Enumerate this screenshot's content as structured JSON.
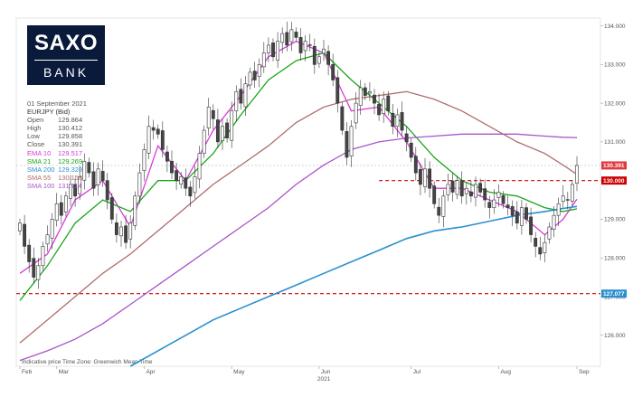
{
  "brand": {
    "line1": "SAXO",
    "line2": "BANK"
  },
  "info": {
    "date": "01 September 2021",
    "instrument": "EURJPY (Bid)",
    "rows": [
      {
        "label": "Open",
        "value": "129.864",
        "color": "#555555"
      },
      {
        "label": "High",
        "value": "130.412",
        "color": "#555555"
      },
      {
        "label": "Low",
        "value": "129.858",
        "color": "#555555"
      },
      {
        "label": "Close",
        "value": "130.391",
        "color": "#555555"
      },
      {
        "label": "EMA 10",
        "value": "129.517",
        "color": "#d63cd6"
      },
      {
        "label": "SMA 21",
        "value": "129.269",
        "color": "#1aa51a"
      },
      {
        "label": "SMA 200",
        "value": "129.328",
        "color": "#2b8fcf"
      },
      {
        "label": "SMA 55",
        "value": "130.158",
        "color": "#b06d6d"
      },
      {
        "label": "SMA 100",
        "value": "131.114",
        "color": "#a855c8"
      }
    ]
  },
  "chart_data": {
    "type": "candlestick",
    "title": "EURJPY (Bid)",
    "ylim": [
      125.2,
      134.2
    ],
    "y_ticks": [
      "126.000",
      "127.000",
      "128.000",
      "129.000",
      "130.000",
      "131.000",
      "132.000",
      "133.000",
      "134.000"
    ],
    "x_ticks": [
      "Feb",
      "Mar",
      "Apr",
      "May",
      "Jun",
      "Jul",
      "Aug",
      "Sep"
    ],
    "x_year": "2021",
    "footer": "Indicative price    Time Zone: Greenwich Mean Time",
    "price_points": [
      [
        0,
        128.9
      ],
      [
        1,
        128.3
      ],
      [
        2,
        127.9
      ],
      [
        3,
        127.5
      ],
      [
        4,
        127.8
      ],
      [
        5,
        128.3
      ],
      [
        6,
        128.6
      ],
      [
        7,
        129.0
      ],
      [
        8,
        129.4
      ],
      [
        9,
        129.1
      ],
      [
        10,
        129.6
      ],
      [
        11,
        129.9
      ],
      [
        12,
        129.6
      ],
      [
        13,
        130.1
      ],
      [
        14,
        130.5
      ],
      [
        15,
        130.2
      ],
      [
        16,
        129.8
      ],
      [
        17,
        130.3
      ],
      [
        18,
        130.0
      ],
      [
        19,
        129.5
      ],
      [
        20,
        129.0
      ],
      [
        21,
        128.6
      ],
      [
        22,
        128.8
      ],
      [
        23,
        128.4
      ],
      [
        24,
        128.9
      ],
      [
        25,
        129.6
      ],
      [
        26,
        130.2
      ],
      [
        27,
        130.8
      ],
      [
        28,
        131.4
      ],
      [
        29,
        131.3
      ],
      [
        30,
        131.2
      ],
      [
        31,
        130.8
      ],
      [
        32,
        130.5
      ],
      [
        33,
        130.2
      ],
      [
        34,
        130.0
      ],
      [
        35,
        130.1
      ],
      [
        36,
        129.8
      ],
      [
        37,
        129.6
      ],
      [
        38,
        130.1
      ],
      [
        39,
        130.7
      ],
      [
        40,
        131.3
      ],
      [
        41,
        131.9
      ],
      [
        42,
        131.6
      ],
      [
        43,
        131.0
      ],
      [
        44,
        131.4
      ],
      [
        45,
        131.1
      ],
      [
        46,
        131.8
      ],
      [
        47,
        132.3
      ],
      [
        48,
        132.0
      ],
      [
        49,
        132.5
      ],
      [
        50,
        132.8
      ],
      [
        51,
        132.6
      ],
      [
        52,
        133.0
      ],
      [
        53,
        133.3
      ],
      [
        54,
        133.5
      ],
      [
        55,
        133.2
      ],
      [
        56,
        133.6
      ],
      [
        57,
        133.8
      ],
      [
        58,
        133.5
      ],
      [
        59,
        133.9
      ],
      [
        60,
        133.7
      ],
      [
        61,
        133.3
      ],
      [
        62,
        133.6
      ],
      [
        63,
        133.5
      ],
      [
        64,
        133.0
      ],
      [
        65,
        133.2
      ],
      [
        66,
        133.4
      ],
      [
        67,
        133.0
      ],
      [
        68,
        132.6
      ],
      [
        69,
        132.0
      ],
      [
        70,
        131.3
      ],
      [
        71,
        130.6
      ],
      [
        72,
        131.4
      ],
      [
        73,
        132.0
      ],
      [
        74,
        132.4
      ],
      [
        75,
        132.2
      ],
      [
        76,
        132.3
      ],
      [
        77,
        132.0
      ],
      [
        78,
        131.7
      ],
      [
        79,
        132.1
      ],
      [
        80,
        131.8
      ],
      [
        81,
        131.4
      ],
      [
        82,
        131.7
      ],
      [
        83,
        131.3
      ],
      [
        84,
        131.0
      ],
      [
        85,
        130.6
      ],
      [
        86,
        130.2
      ],
      [
        87,
        129.9
      ],
      [
        88,
        130.3
      ],
      [
        89,
        129.8
      ],
      [
        90,
        129.4
      ],
      [
        91,
        129.1
      ],
      [
        92,
        129.6
      ],
      [
        93,
        129.9
      ],
      [
        94,
        129.7
      ],
      [
        95,
        130.0
      ],
      [
        96,
        129.6
      ],
      [
        97,
        129.8
      ],
      [
        98,
        129.6
      ],
      [
        99,
        129.9
      ],
      [
        100,
        129.7
      ],
      [
        101,
        129.5
      ],
      [
        102,
        129.3
      ],
      [
        103,
        129.5
      ],
      [
        104,
        129.7
      ],
      [
        105,
        129.4
      ],
      [
        106,
        129.3
      ],
      [
        107,
        129.1
      ],
      [
        108,
        128.9
      ],
      [
        109,
        129.3
      ],
      [
        110,
        129.0
      ],
      [
        111,
        128.6
      ],
      [
        112,
        128.3
      ],
      [
        113,
        128.1
      ],
      [
        114,
        128.4
      ],
      [
        115,
        128.8
      ],
      [
        116,
        129.1
      ],
      [
        117,
        129.4
      ],
      [
        118,
        129.6
      ],
      [
        119,
        129.5
      ],
      [
        120,
        129.9
      ],
      [
        121,
        130.39
      ]
    ],
    "series": [
      {
        "name": "EMA 10",
        "color": "#d63cd6",
        "points": [
          [
            0,
            127.6
          ],
          [
            6,
            128.1
          ],
          [
            12,
            129.5
          ],
          [
            18,
            130.0
          ],
          [
            24,
            128.8
          ],
          [
            30,
            130.9
          ],
          [
            36,
            130.0
          ],
          [
            42,
            131.3
          ],
          [
            48,
            132.2
          ],
          [
            54,
            133.2
          ],
          [
            60,
            133.6
          ],
          [
            66,
            133.3
          ],
          [
            72,
            131.8
          ],
          [
            78,
            131.9
          ],
          [
            84,
            131.0
          ],
          [
            90,
            129.8
          ],
          [
            96,
            129.8
          ],
          [
            102,
            129.5
          ],
          [
            108,
            129.2
          ],
          [
            114,
            128.6
          ],
          [
            118,
            129.0
          ],
          [
            121,
            129.52
          ]
        ]
      },
      {
        "name": "SMA 21",
        "color": "#1aa51a",
        "points": [
          [
            0,
            126.9
          ],
          [
            6,
            127.8
          ],
          [
            12,
            128.9
          ],
          [
            18,
            129.5
          ],
          [
            24,
            129.2
          ],
          [
            30,
            130.0
          ],
          [
            36,
            130.0
          ],
          [
            42,
            130.7
          ],
          [
            48,
            131.7
          ],
          [
            54,
            132.6
          ],
          [
            60,
            133.1
          ],
          [
            66,
            133.3
          ],
          [
            72,
            132.6
          ],
          [
            78,
            132.0
          ],
          [
            84,
            131.4
          ],
          [
            90,
            130.6
          ],
          [
            96,
            130.0
          ],
          [
            102,
            129.7
          ],
          [
            108,
            129.6
          ],
          [
            114,
            129.3
          ],
          [
            118,
            129.2
          ],
          [
            121,
            129.27
          ]
        ]
      },
      {
        "name": "SMA 55",
        "color": "#b06d6d",
        "points": [
          [
            0,
            125.8
          ],
          [
            6,
            126.4
          ],
          [
            12,
            127.0
          ],
          [
            18,
            127.6
          ],
          [
            24,
            128.1
          ],
          [
            30,
            128.7
          ],
          [
            36,
            129.3
          ],
          [
            42,
            129.9
          ],
          [
            48,
            130.4
          ],
          [
            54,
            130.9
          ],
          [
            60,
            131.5
          ],
          [
            66,
            131.9
          ],
          [
            72,
            132.1
          ],
          [
            78,
            132.2
          ],
          [
            84,
            132.3
          ],
          [
            90,
            132.1
          ],
          [
            96,
            131.8
          ],
          [
            102,
            131.4
          ],
          [
            108,
            131.0
          ],
          [
            114,
            130.7
          ],
          [
            118,
            130.4
          ],
          [
            121,
            130.16
          ]
        ]
      },
      {
        "name": "SMA 100",
        "color": "#a855c8",
        "points": [
          [
            0,
            125.35
          ],
          [
            6,
            125.6
          ],
          [
            12,
            125.9
          ],
          [
            18,
            126.3
          ],
          [
            24,
            126.8
          ],
          [
            30,
            127.3
          ],
          [
            36,
            127.8
          ],
          [
            42,
            128.3
          ],
          [
            48,
            128.8
          ],
          [
            54,
            129.3
          ],
          [
            60,
            129.9
          ],
          [
            66,
            130.4
          ],
          [
            72,
            130.8
          ],
          [
            78,
            131.0
          ],
          [
            84,
            131.1
          ],
          [
            90,
            131.15
          ],
          [
            96,
            131.2
          ],
          [
            102,
            131.2
          ],
          [
            108,
            131.2
          ],
          [
            114,
            131.15
          ],
          [
            118,
            131.12
          ],
          [
            121,
            131.11
          ]
        ]
      },
      {
        "name": "SMA 200",
        "color": "#2b8fcf",
        "points": [
          [
            24,
            125.2
          ],
          [
            30,
            125.6
          ],
          [
            36,
            126.0
          ],
          [
            42,
            126.4
          ],
          [
            48,
            126.7
          ],
          [
            54,
            127.0
          ],
          [
            60,
            127.3
          ],
          [
            66,
            127.6
          ],
          [
            72,
            127.9
          ],
          [
            78,
            128.2
          ],
          [
            84,
            128.5
          ],
          [
            90,
            128.7
          ],
          [
            96,
            128.8
          ],
          [
            102,
            128.95
          ],
          [
            108,
            129.1
          ],
          [
            114,
            129.2
          ],
          [
            118,
            129.28
          ],
          [
            121,
            129.33
          ]
        ]
      }
    ],
    "levels": [
      {
        "value": 130.391,
        "label": "130.391",
        "color": "#e0383e",
        "style": "dotted-grey"
      },
      {
        "value": 130.0,
        "label": "130.000",
        "color": "#cc0000",
        "style": "dashed-red",
        "start_x": 78
      },
      {
        "value": 127.077,
        "label": "127.077",
        "color": "#cc0000",
        "style": "dashed-red",
        "tag_color": "#2b8fcf"
      }
    ]
  }
}
